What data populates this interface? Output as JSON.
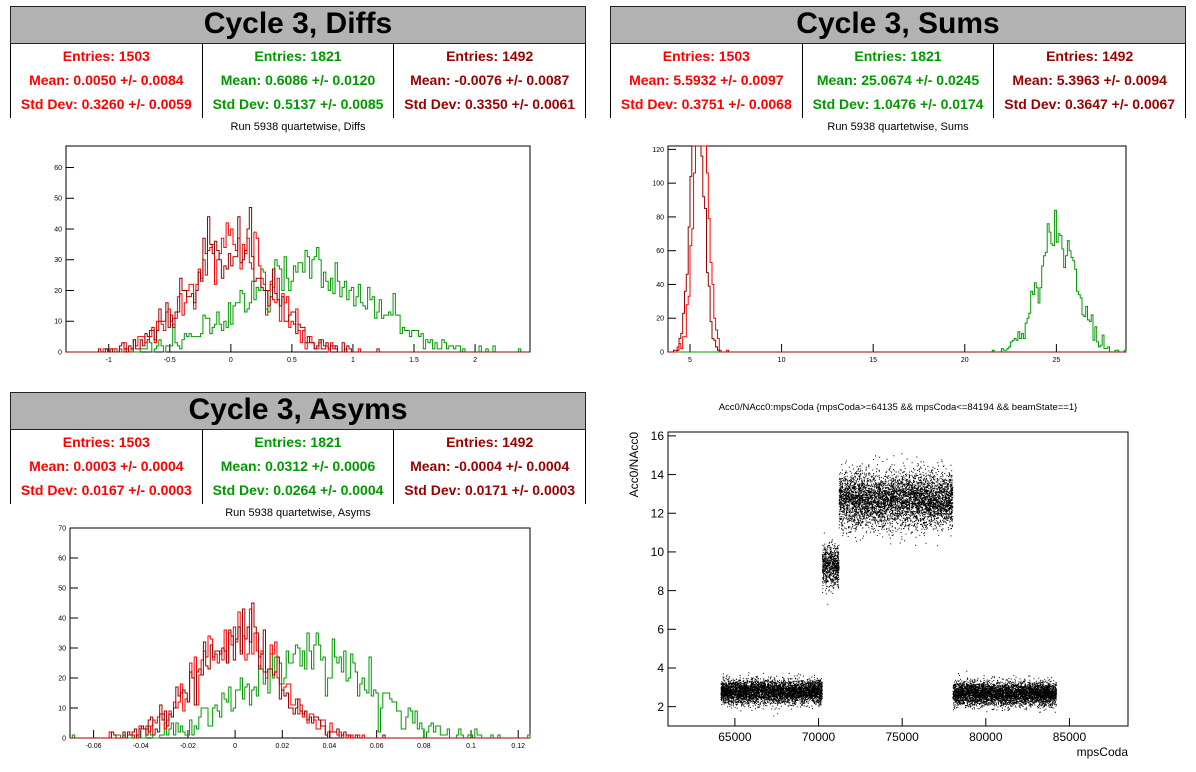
{
  "panels": {
    "diffs": {
      "title": "Cycle 3, Diffs",
      "subtitle": "Run 5938 quartetwise, Diffs",
      "stats": [
        {
          "entries": "Entries: 1503",
          "mean": "Mean: 0.0050 +/- 0.0084",
          "std": "Std Dev: 0.3260 +/- 0.0059",
          "color": "#ff0000"
        },
        {
          "entries": "Entries: 1821",
          "mean": "Mean: 0.6086 +/- 0.0120",
          "std": "Std Dev: 0.5137 +/- 0.0085",
          "color": "#009900"
        },
        {
          "entries": "Entries: 1492",
          "mean": "Mean: -0.0076 +/- 0.0087",
          "std": "Std Dev: 0.3350 +/- 0.0061",
          "color": "#990000"
        }
      ]
    },
    "sums": {
      "title": "Cycle 3, Sums",
      "subtitle": "Run 5938 quartetwise, Sums",
      "stats": [
        {
          "entries": "Entries: 1503",
          "mean": "Mean: 5.5932 +/- 0.0097",
          "std": "Std Dev: 0.3751 +/- 0.0068",
          "color": "#ff0000"
        },
        {
          "entries": "Entries: 1821",
          "mean": "Mean: 25.0674 +/- 0.0245",
          "std": "Std Dev: 1.0476 +/- 0.0174",
          "color": "#009900"
        },
        {
          "entries": "Entries: 1492",
          "mean": "Mean: 5.3963 +/- 0.0094",
          "std": "Std Dev: 0.3647 +/- 0.0067",
          "color": "#990000"
        }
      ]
    },
    "asyms": {
      "title": "Cycle 3, Asyms",
      "subtitle": "Run 5938 quartetwise, Asyms",
      "stats": [
        {
          "entries": "Entries: 1503",
          "mean": "Mean: 0.0003 +/- 0.0004",
          "std": "Std Dev: 0.0167 +/- 0.0003",
          "color": "#ff0000"
        },
        {
          "entries": "Entries: 1821",
          "mean": "Mean: 0.0312 +/- 0.0006",
          "std": "Std Dev: 0.0264 +/- 0.0004",
          "color": "#009900"
        },
        {
          "entries": "Entries: 1492",
          "mean": "Mean: -0.0004 +/- 0.0004",
          "std": "Std Dev: 0.0171 +/- 0.0003",
          "color": "#990000"
        }
      ]
    },
    "scatter": {
      "title": "Acc0/NAcc0:mpsCoda {mpsCoda>=64135 && mpsCoda<=84194 && beamState==1}"
    }
  },
  "chart_data": [
    {
      "type": "histogram",
      "title": "Run 5938 quartetwise, Diffs",
      "xlim": [
        -1.35,
        2.45
      ],
      "ylim": [
        0,
        67
      ],
      "xticks": [
        -1,
        -0.5,
        0,
        0.5,
        1,
        1.5,
        2
      ],
      "xtick_labels": [
        "-1",
        "-0.5",
        "0",
        "0.5",
        "1",
        "1.5",
        "2"
      ],
      "yticks": [
        0,
        10,
        20,
        30,
        40,
        50,
        60
      ],
      "series": [
        {
          "entries": 1503,
          "mean": 0.005,
          "std": 0.326,
          "color": "#ff0000"
        },
        {
          "entries": 1821,
          "mean": 0.6086,
          "std": 0.5137,
          "color": "#009900"
        },
        {
          "entries": 1492,
          "mean": -0.0076,
          "std": 0.335,
          "color": "#990000"
        }
      ],
      "bins": 200
    },
    {
      "type": "histogram",
      "title": "Run 5938 quartetwise, Sums",
      "xlim": [
        3.8,
        28.8
      ],
      "ylim": [
        0,
        122
      ],
      "xticks": [
        5,
        10,
        15,
        20,
        25
      ],
      "xtick_labels": [
        "5",
        "10",
        "15",
        "20",
        "25"
      ],
      "yticks": [
        0,
        20,
        40,
        60,
        80,
        100,
        120
      ],
      "series": [
        {
          "entries": 1503,
          "mean": 5.5932,
          "std": 0.3751,
          "color": "#ff0000"
        },
        {
          "entries": 1821,
          "mean": 25.0674,
          "std": 1.0476,
          "color": "#009900"
        },
        {
          "entries": 1492,
          "mean": 5.3963,
          "std": 0.3647,
          "color": "#990000"
        }
      ],
      "bins": 250
    },
    {
      "type": "histogram",
      "title": "Run 5938 quartetwise, Asyms",
      "xlim": [
        -0.07,
        0.125
      ],
      "ylim": [
        0,
        70
      ],
      "xticks": [
        -0.06,
        -0.04,
        -0.02,
        0,
        0.02,
        0.04,
        0.06,
        0.08,
        0.1,
        0.12
      ],
      "xtick_labels": [
        "-0.06",
        "-0.04",
        "-0.02",
        "0",
        "0.02",
        "0.04",
        "0.06",
        "0.08",
        "0.1",
        "0.12"
      ],
      "yticks": [
        0,
        10,
        20,
        30,
        40,
        50,
        60,
        70
      ],
      "series": [
        {
          "entries": 1503,
          "mean": 0.0003,
          "std": 0.0167,
          "color": "#ff0000"
        },
        {
          "entries": 1821,
          "mean": 0.0312,
          "std": 0.0264,
          "color": "#009900"
        },
        {
          "entries": 1492,
          "mean": -0.0004,
          "std": 0.0171,
          "color": "#990000"
        }
      ],
      "bins": 200
    },
    {
      "type": "scatter",
      "title": "Acc0/NAcc0:mpsCoda {mpsCoda>=64135 && mpsCoda<=84194 && beamState==1}",
      "xlabel": "mpsCoda",
      "ylabel": "Acc0/NAcc0",
      "xlim": [
        61000,
        88500
      ],
      "ylim": [
        1,
        16.2
      ],
      "xticks": [
        65000,
        70000,
        75000,
        80000,
        85000
      ],
      "xtick_labels": [
        "65000",
        "70000",
        "75000",
        "80000",
        "85000"
      ],
      "yticks": [
        2,
        4,
        6,
        8,
        10,
        12,
        14,
        16
      ],
      "clusters": [
        {
          "x": [
            64135,
            70200
          ],
          "y_center": 2.8,
          "y_spread": 0.3
        },
        {
          "x": [
            70200,
            71200
          ],
          "y_center": 9.3,
          "y_spread": 0.5
        },
        {
          "x": [
            71200,
            78000
          ],
          "y_center": 12.7,
          "y_spread": 0.7
        },
        {
          "x": [
            78000,
            84194
          ],
          "y_center": 2.7,
          "y_spread": 0.3
        }
      ]
    }
  ]
}
